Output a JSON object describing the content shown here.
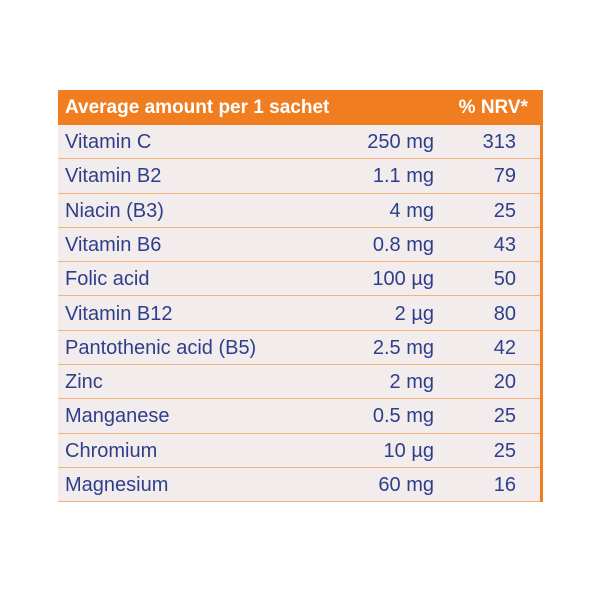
{
  "table": {
    "header": [
      "Average amount per 1 sachet",
      "% NRV*"
    ],
    "rows": [
      [
        "Vitamin C",
        "250 mg",
        "313"
      ],
      [
        "Vitamin B2",
        "1.1 mg",
        "79"
      ],
      [
        "Niacin (B3)",
        "4 mg",
        "25"
      ],
      [
        "Vitamin B6",
        "0.8 mg",
        "43"
      ],
      [
        "Folic acid",
        "100 µg",
        "50"
      ],
      [
        "Vitamin B12",
        "2 µg",
        "80"
      ],
      [
        "Pantothenic acid (B5)",
        "2.5 mg",
        "42"
      ],
      [
        "Zinc",
        "2 mg",
        "20"
      ],
      [
        "Manganese",
        "0.5 mg",
        "25"
      ],
      [
        "Chromium",
        "10 µg",
        "25"
      ],
      [
        "Magnesium",
        "60 mg",
        "16"
      ]
    ]
  }
}
